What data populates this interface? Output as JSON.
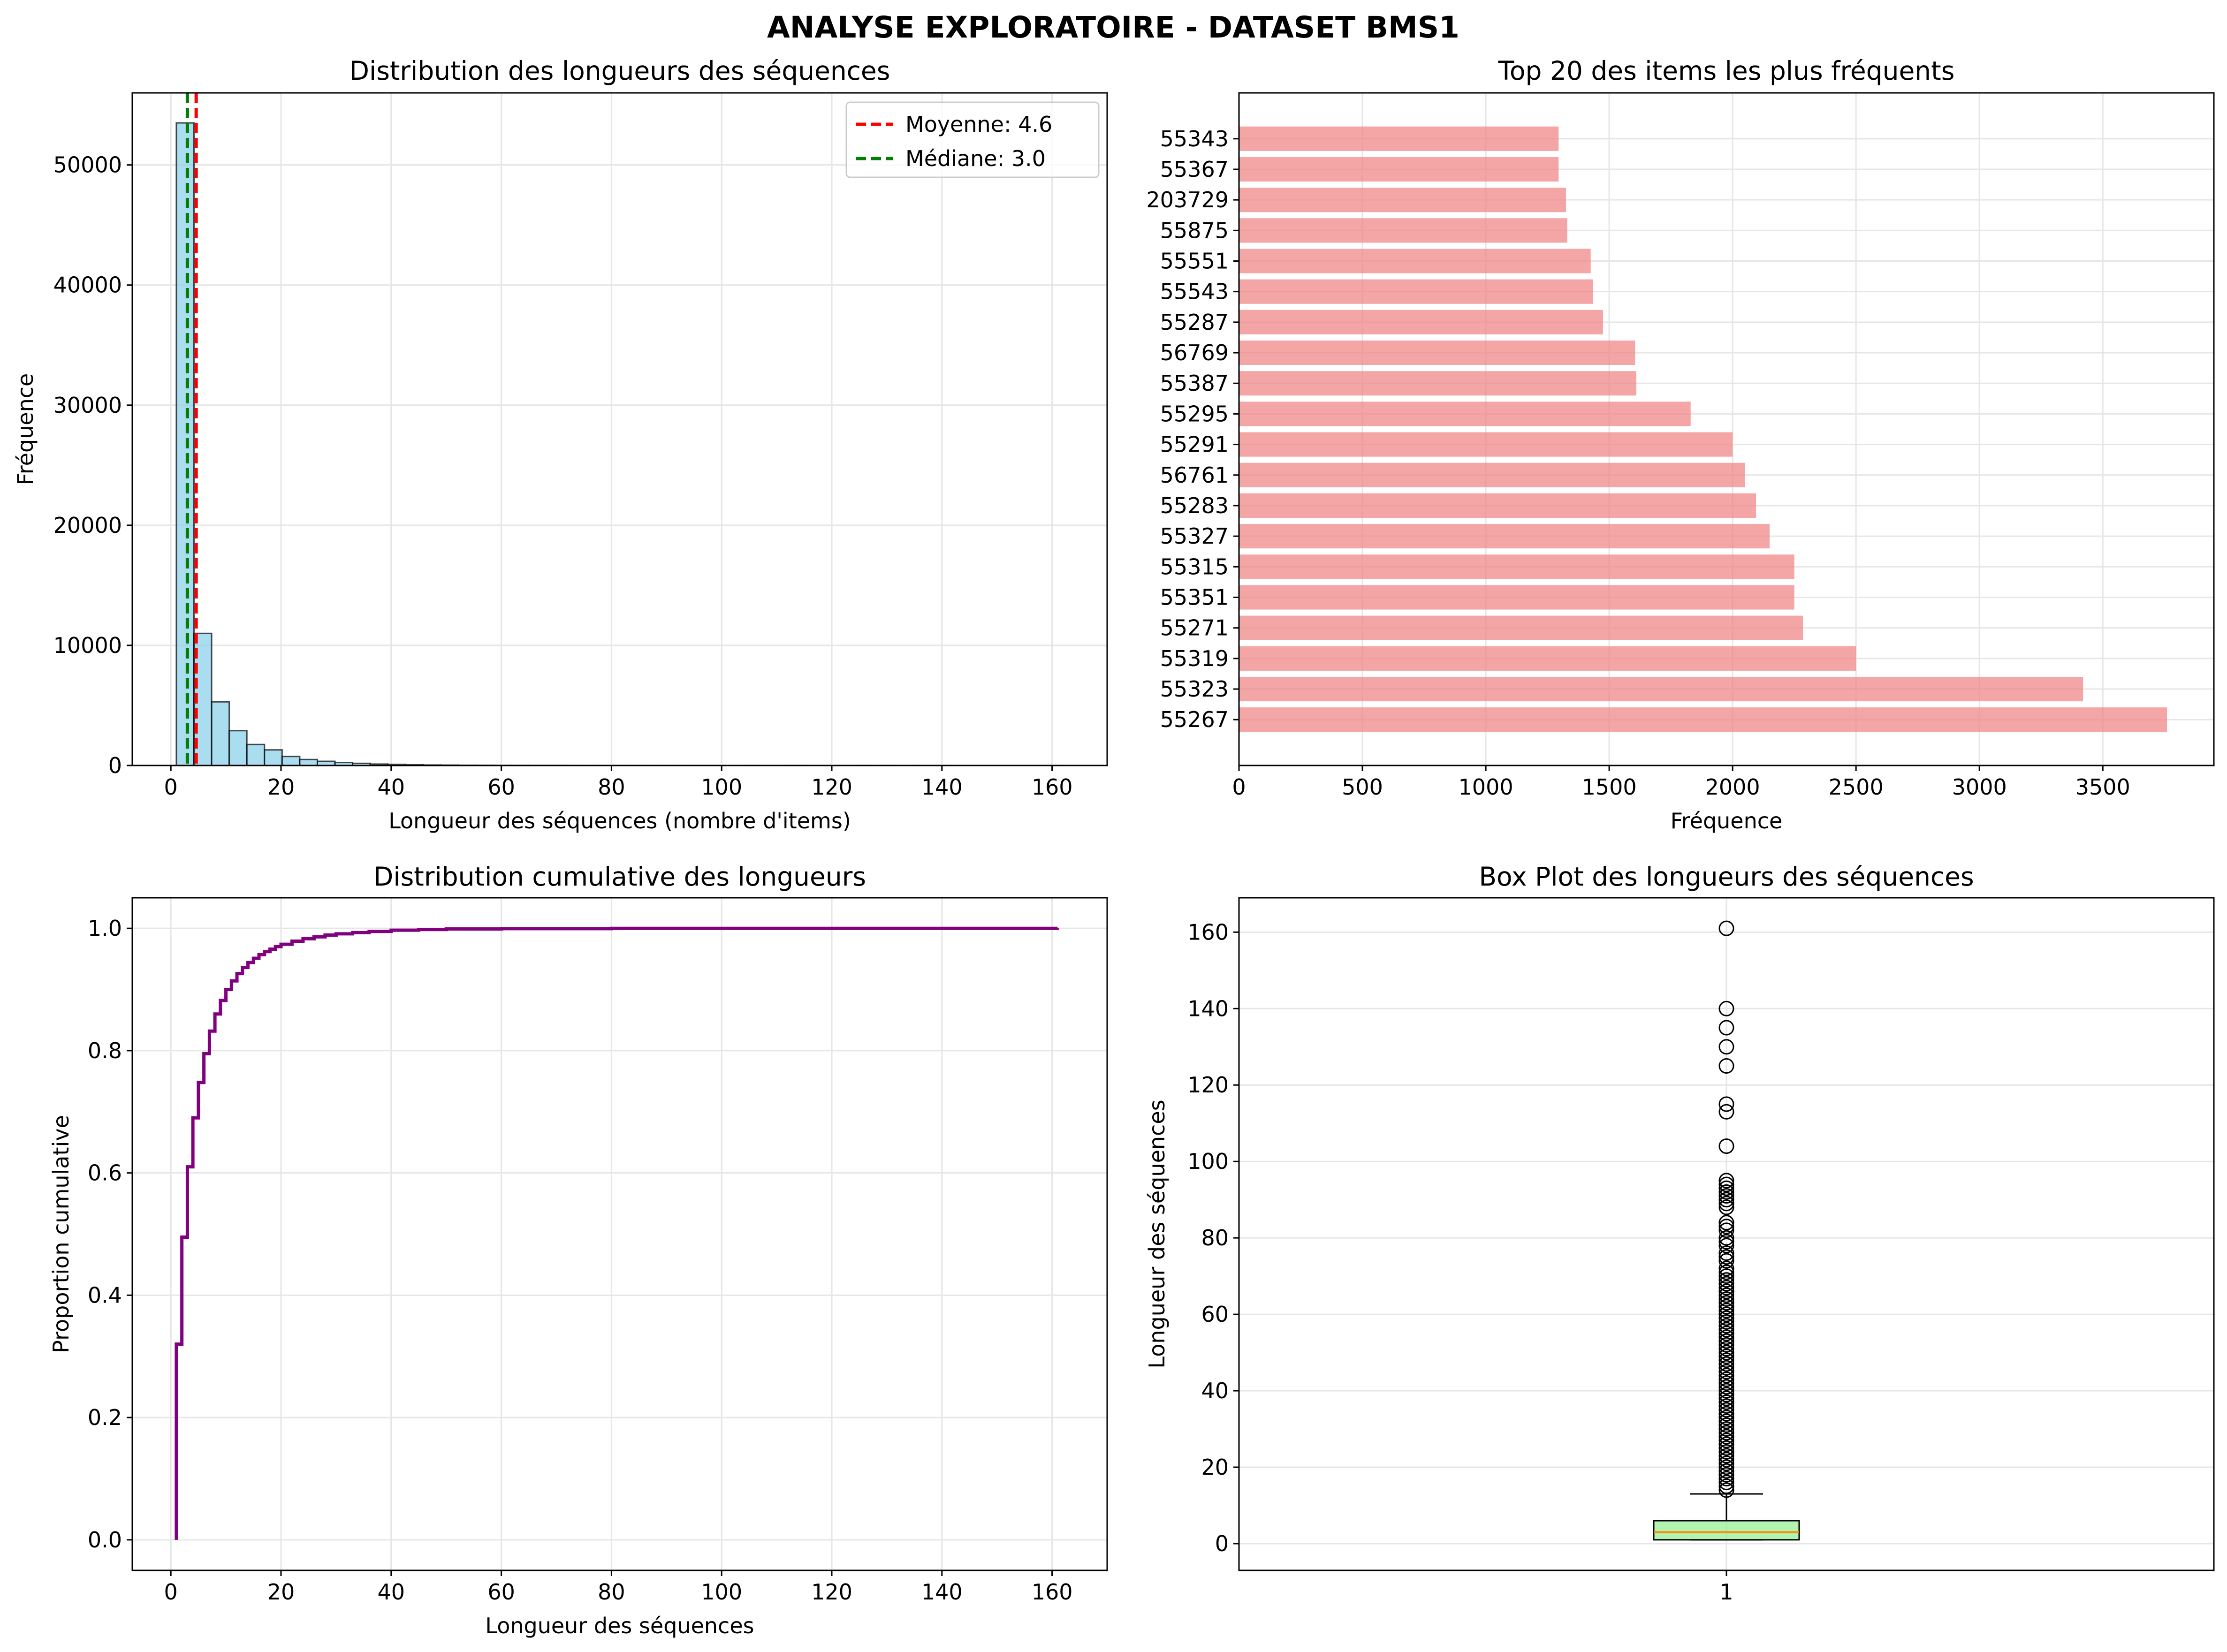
{
  "figure_title": "ANALYSE EXPLORATOIRE - DATASET BMS1",
  "colors": {
    "hist_fill": "#87ceeb",
    "bar_fill": "#f08080",
    "mean_line": "#ff0000",
    "median_line": "#008000",
    "cdf_line": "#800080",
    "box_fill": "#90ee90",
    "median_mark": "#ff8c00",
    "grid": "#e6e6e6"
  },
  "chart_data": [
    {
      "type": "bar",
      "title": "Distribution des longueurs des séquences",
      "xlabel": "Longueur des séquences (nombre d'items)",
      "ylabel": "Fréquence",
      "xlim": [
        -7,
        170
      ],
      "ylim": [
        0,
        56000
      ],
      "xticks": [
        "0",
        "20",
        "40",
        "60",
        "80",
        "100",
        "120",
        "140",
        "160"
      ],
      "yticks": [
        "0",
        "10000",
        "20000",
        "30000",
        "40000",
        "50000"
      ],
      "bins": [
        [
          1,
          4.2,
          53500
        ],
        [
          4.2,
          7.4,
          11000
        ],
        [
          7.4,
          10.6,
          5300
        ],
        [
          10.6,
          13.8,
          2900
        ],
        [
          13.8,
          17,
          1750
        ],
        [
          17,
          20.2,
          1300
        ],
        [
          20.2,
          23.4,
          750
        ],
        [
          23.4,
          26.6,
          500
        ],
        [
          26.6,
          29.8,
          350
        ],
        [
          29.8,
          33,
          250
        ],
        [
          33,
          36.2,
          180
        ],
        [
          36.2,
          39.4,
          120
        ],
        [
          39.4,
          42.6,
          90
        ],
        [
          42.6,
          45.8,
          60
        ],
        [
          45.8,
          49,
          40
        ],
        [
          49,
          52.2,
          30
        ],
        [
          52.2,
          55.4,
          20
        ],
        [
          55.4,
          58.6,
          15
        ],
        [
          58.6,
          61.8,
          10
        ],
        [
          61.8,
          65,
          8
        ],
        [
          65,
          68.2,
          6
        ],
        [
          68.2,
          71.4,
          5
        ],
        [
          71.4,
          74.6,
          4
        ],
        [
          74.6,
          77.8,
          3
        ],
        [
          77.8,
          81,
          3
        ],
        [
          81,
          84.2,
          2
        ],
        [
          84.2,
          87.4,
          2
        ],
        [
          87.4,
          90.6,
          2
        ],
        [
          90.6,
          93.8,
          2
        ],
        [
          93.8,
          97,
          1
        ],
        [
          97,
          100.2,
          1
        ],
        [
          103.4,
          106.6,
          1
        ],
        [
          112,
          115,
          2
        ],
        [
          124,
          127,
          1
        ],
        [
          129,
          132,
          1
        ],
        [
          134,
          137,
          1
        ],
        [
          139,
          142,
          1
        ],
        [
          160,
          162,
          1
        ]
      ],
      "reference_lines": [
        {
          "name": "mean",
          "label": "Moyenne: 4.6",
          "x": 4.6
        },
        {
          "name": "median",
          "label": "Médiane: 3.0",
          "x": 3.0
        }
      ],
      "legend": "top-right",
      "grid": true
    },
    {
      "type": "bar",
      "orientation": "horizontal",
      "title": "Top 20 des items les plus fréquents",
      "xlabel": "Fréquence",
      "ylabel": "",
      "xlim": [
        0,
        3950
      ],
      "xticks": [
        "0",
        "500",
        "1000",
        "1500",
        "2000",
        "2500",
        "3000",
        "3500"
      ],
      "categories": [
        "55267",
        "55323",
        "55319",
        "55271",
        "55351",
        "55315",
        "55327",
        "55283",
        "56761",
        "55291",
        "55295",
        "55387",
        "56769",
        "55287",
        "55543",
        "55551",
        "55875",
        "203729",
        "55367",
        "55343"
      ],
      "values": [
        3760,
        3420,
        2500,
        2285,
        2250,
        2250,
        2150,
        2095,
        2050,
        2000,
        1830,
        1610,
        1605,
        1475,
        1435,
        1425,
        1330,
        1325,
        1295,
        1295
      ],
      "grid": true
    },
    {
      "type": "line",
      "step": true,
      "title": "Distribution cumulative des longueurs",
      "xlabel": "Longueur des séquences",
      "ylabel": "Proportion cumulative",
      "xlim": [
        -7,
        170
      ],
      "ylim": [
        -0.05,
        1.05
      ],
      "xticks": [
        "0",
        "20",
        "40",
        "60",
        "80",
        "100",
        "120",
        "140",
        "160"
      ],
      "yticks": [
        "0.0",
        "0.2",
        "0.4",
        "0.6",
        "0.8",
        "1.0"
      ],
      "x": [
        1,
        2,
        3,
        4,
        5,
        6,
        7,
        8,
        9,
        10,
        11,
        12,
        13,
        14,
        15,
        16,
        17,
        18,
        19,
        20,
        22,
        24,
        26,
        28,
        30,
        33,
        36,
        40,
        45,
        50,
        60,
        80,
        161
      ],
      "y": [
        0.32,
        0.495,
        0.61,
        0.69,
        0.748,
        0.795,
        0.832,
        0.86,
        0.882,
        0.9,
        0.914,
        0.926,
        0.936,
        0.944,
        0.951,
        0.957,
        0.962,
        0.966,
        0.97,
        0.974,
        0.979,
        0.983,
        0.986,
        0.989,
        0.991,
        0.993,
        0.995,
        0.997,
        0.998,
        0.999,
        0.9995,
        0.9999,
        1.0
      ],
      "grid": true
    },
    {
      "type": "box",
      "title": "Box Plot des longueurs des séquences",
      "xlabel": "",
      "ylabel": "Longueur des séquences",
      "ylim": [
        -7,
        169
      ],
      "xticks": [
        "1"
      ],
      "yticks": [
        "0",
        "20",
        "40",
        "60",
        "80",
        "100",
        "120",
        "140",
        "160"
      ],
      "box": {
        "min": 1,
        "q1": 1,
        "median": 3,
        "q3": 6,
        "whisker_high": 13
      },
      "outliers": [
        14,
        15,
        16,
        17,
        18,
        19,
        20,
        21,
        22,
        23,
        24,
        25,
        26,
        27,
        28,
        29,
        30,
        31,
        32,
        33,
        34,
        35,
        36,
        37,
        38,
        39,
        40,
        41,
        42,
        43,
        44,
        45,
        46,
        47,
        48,
        49,
        50,
        51,
        52,
        53,
        54,
        55,
        56,
        57,
        58,
        59,
        60,
        61,
        62,
        63,
        64,
        65,
        66,
        67,
        68,
        69,
        70,
        71,
        72,
        74,
        75,
        76,
        78,
        79,
        80,
        82,
        83,
        84,
        88,
        89,
        90,
        91,
        92,
        93,
        94,
        95,
        104,
        113,
        115,
        125,
        130,
        135,
        140,
        161
      ],
      "grid": true
    }
  ]
}
